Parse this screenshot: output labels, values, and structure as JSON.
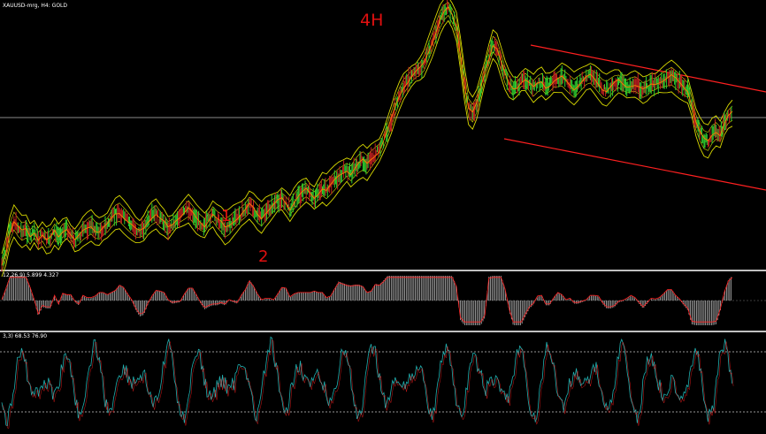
{
  "window": {
    "symbol_line": "XAUUSD-mrg, H4:  GOLD",
    "timeframe_note": "4H",
    "annotation_1": "1",
    "annotation_2": "2"
  },
  "indicators": {
    "macd_label": "12,26,9) 5.899 4.327",
    "stoch_label": "3,3) 68.53 76.90"
  },
  "colors": {
    "background": "#000000",
    "candles_bull": "#2fcf2f",
    "candles_bear": "#c02020",
    "bands": "#d8d800",
    "price_line": "#ff8000",
    "channel": "#ff2020",
    "hline": "#8a8a8a",
    "macd_hist": "#b0b0b0",
    "macd_signal": "#ff2020",
    "stoch_main": "#20b0b0",
    "stoch_levels": "#c8c8c8",
    "separator": "#c0c0c0"
  },
  "chart_data": {
    "type": "line",
    "title": "",
    "series": [
      {
        "values": [
          300,
          285,
          262,
          250,
          257,
          262,
          260,
          268,
          262,
          270,
          265,
          272,
          270,
          262,
          268,
          261,
          258,
          265,
          272,
          268,
          262,
          258,
          255,
          260,
          262,
          258,
          255,
          248,
          242,
          240,
          245,
          250,
          255,
          260,
          262,
          258,
          250,
          245,
          242,
          248,
          252,
          258,
          254,
          248,
          244,
          240,
          236,
          242,
          248,
          252,
          255,
          248,
          242,
          248,
          252,
          258,
          255,
          250,
          246,
          242,
          238,
          232,
          236,
          242,
          246,
          240,
          236,
          232,
          228,
          225,
          230,
          236,
          228,
          222,
          218,
          215,
          220,
          224,
          218,
          212,
          215,
          210,
          205,
          200,
          196,
          192,
          196,
          190,
          185,
          182,
          186,
          180,
          175,
          170,
          160,
          148,
          135,
          120,
          108,
          98,
          92,
          86,
          82,
          78,
          72,
          60,
          48,
          35,
          22,
          14,
          10,
          18,
          30,
          60,
          95,
          122,
          128,
          118,
          100,
          82,
          65,
          50,
          55,
          70,
          85,
          95,
          100,
          98,
          92,
          90,
          95,
          100,
          95,
          92,
          98,
          96,
          92,
          90,
          88,
          92,
          96,
          100,
          96,
          92,
          88,
          86,
          90,
          95,
          100,
          102,
          98,
          94,
          92,
          96,
          98,
          96,
          95,
          98,
          102,
          100,
          96,
          95,
          92,
          90,
          88,
          86,
          90,
          94,
          98,
          102,
          118,
          138,
          150,
          158,
          160,
          152,
          148,
          152,
          140,
          132,
          128
        ]
      }
    ]
  }
}
